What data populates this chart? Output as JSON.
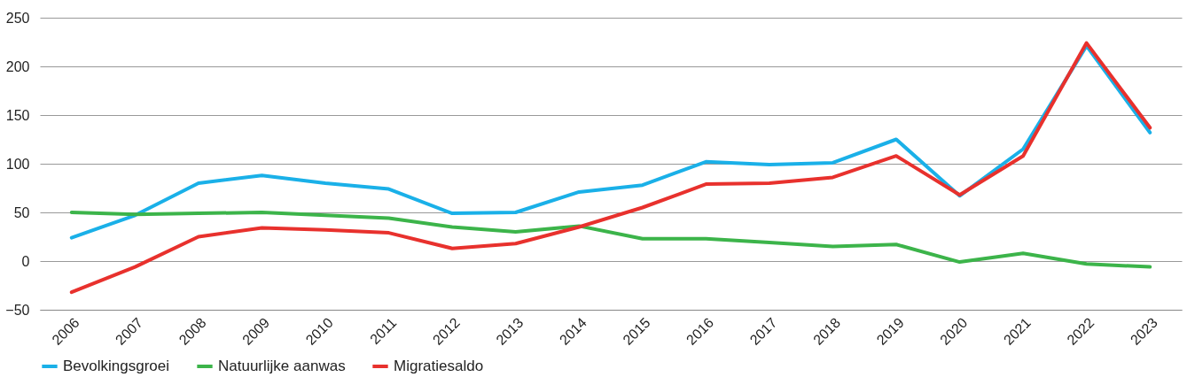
{
  "chart_data": {
    "type": "line",
    "categories": [
      "2006",
      "2007",
      "2008",
      "2009",
      "2010",
      "2011",
      "2012",
      "2013",
      "2014",
      "2015",
      "2016",
      "2017",
      "2018",
      "2019",
      "2020",
      "2021",
      "2022",
      "2023"
    ],
    "series": [
      {
        "name": "Bevolkingsgroei",
        "color": "#1ab0e8",
        "values": [
          24,
          47,
          80,
          88,
          80,
          74,
          49,
          50,
          71,
          78,
          102,
          99,
          101,
          125,
          67,
          115,
          221,
          132
        ]
      },
      {
        "name": "Natuurlijke aanwas",
        "color": "#3cb44a",
        "values": [
          50,
          48,
          49,
          50,
          47,
          44,
          35,
          30,
          36,
          23,
          23,
          19,
          15,
          17,
          -1,
          8,
          -3,
          -6
        ]
      },
      {
        "name": "Migratiesaldo",
        "color": "#e8312d",
        "values": [
          -32,
          -6,
          25,
          34,
          32,
          29,
          13,
          18,
          35,
          55,
          79,
          80,
          86,
          108,
          68,
          108,
          224,
          137
        ]
      }
    ],
    "ylim": [
      -50,
      250
    ],
    "yticks": [
      -50,
      0,
      50,
      100,
      150,
      200,
      250
    ],
    "grid": "y",
    "legend": "bottom left",
    "line_style": "solid"
  }
}
